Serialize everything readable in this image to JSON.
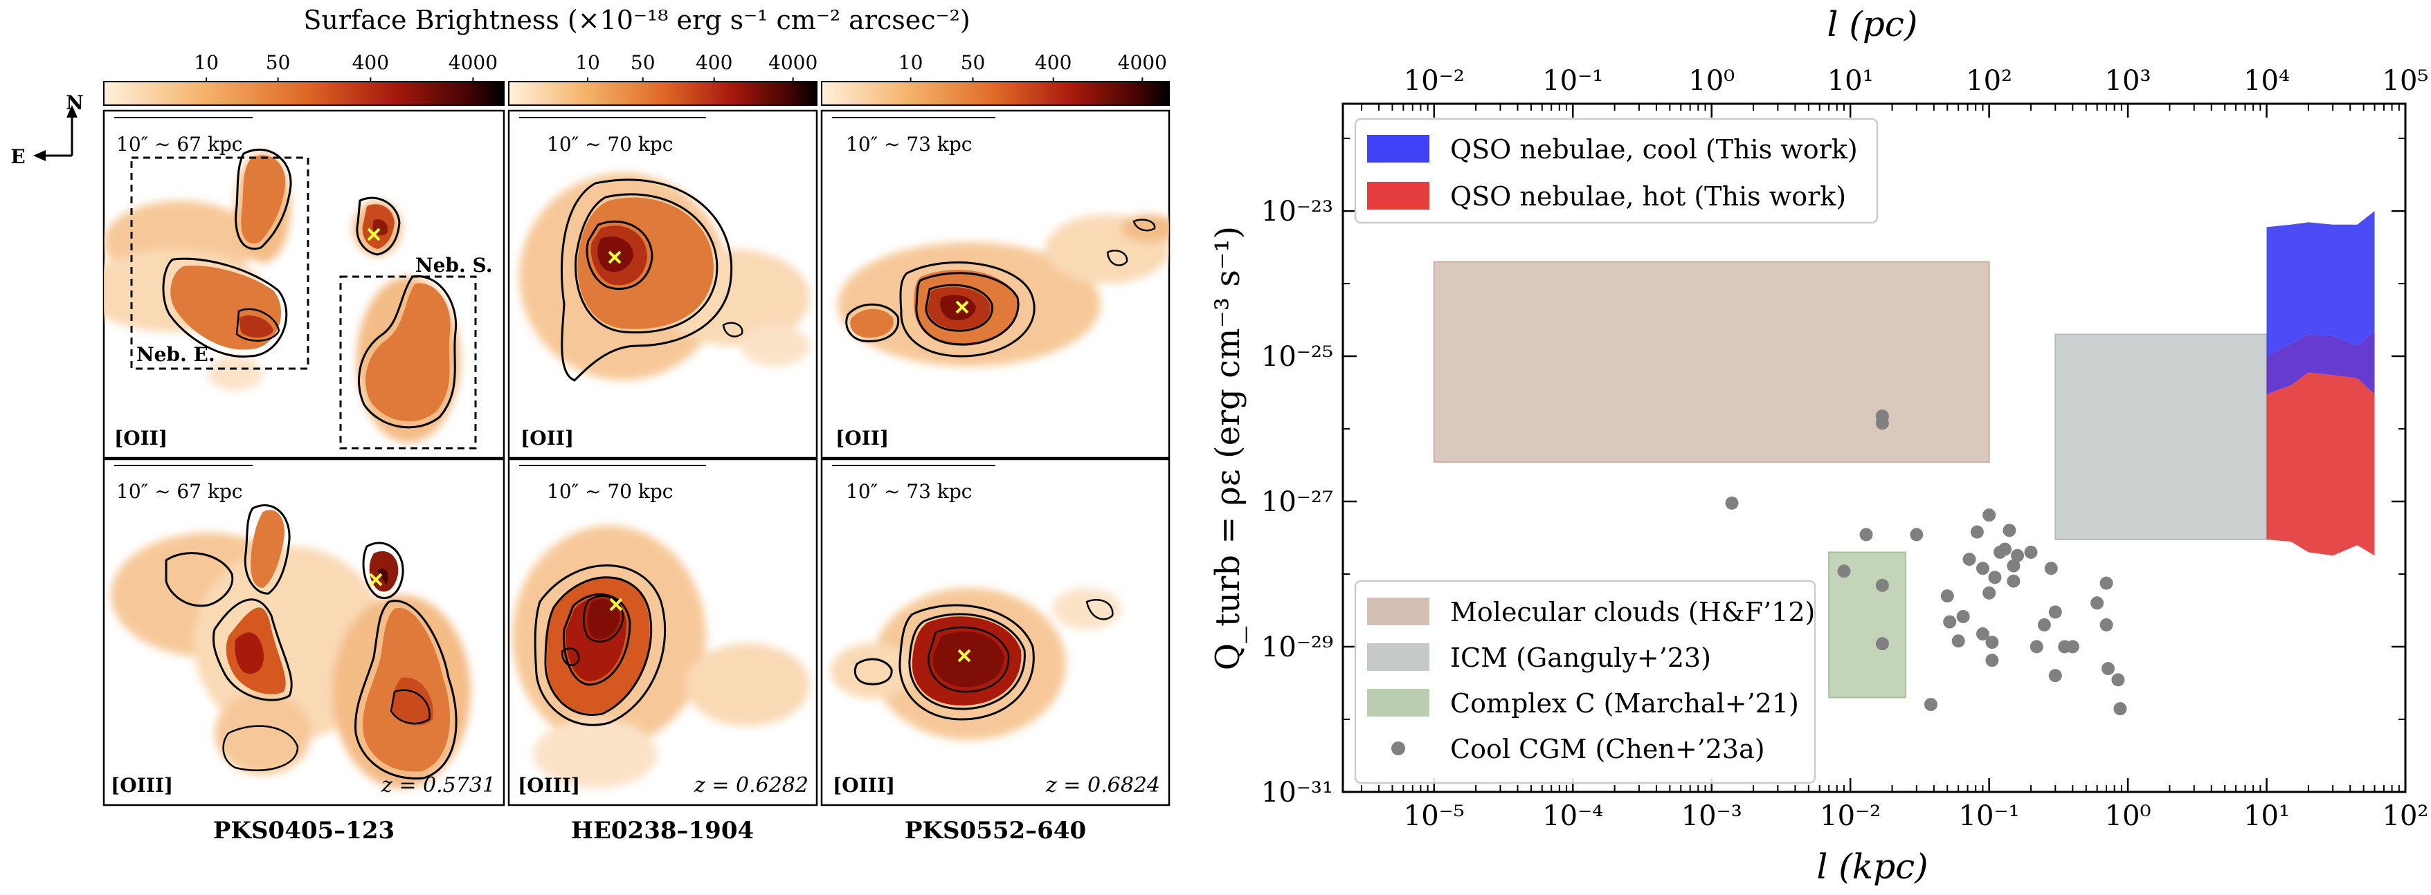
{
  "left_panel": {
    "colorbar_title": "Surface Brightness (×10⁻¹⁸ erg s⁻¹ cm⁻² arcsec⁻²)",
    "colorbar_ticks": [
      "10",
      "50",
      "400",
      "4000"
    ],
    "compass": {
      "north": "N",
      "east": "E"
    },
    "fields": [
      {
        "name": "PKS0405–123",
        "redshift": "z = 0.5731",
        "scalebar": "10″ ∼ 67 kpc",
        "row_labels": [
          "[OII]",
          "[OIII]"
        ],
        "nebula_labels": [
          "Neb. E.",
          "Neb. S."
        ]
      },
      {
        "name": "HE0238–1904",
        "redshift": "z = 0.6282",
        "scalebar": "10″ ∼ 70 kpc",
        "row_labels": [
          "[OII]",
          "[OIII]"
        ]
      },
      {
        "name": "PKS0552–640",
        "redshift": "z = 0.6824",
        "scalebar": "10″ ∼ 73 kpc",
        "row_labels": [
          "[OII]",
          "[OIII]"
        ]
      }
    ],
    "cmap_colors": [
      "#fff1dc",
      "#f5b36a",
      "#df6a28",
      "#a81a0c",
      "#4a0404",
      "#000000"
    ],
    "quasar_marker_color": "#ffff3c"
  },
  "chart_data": {
    "type": "scatter",
    "xlabel": "l (kpc)",
    "x2label": "l (pc)",
    "ylabel": "Q_turb = ρε (erg cm⁻³ s⁻¹)",
    "xscale": "log",
    "yscale": "log",
    "xlim": [
      2.2e-06,
      100
    ],
    "ylim": [
      1e-31,
      3e-22
    ],
    "x2lim": [
      0.0022,
      100000
    ],
    "xticks": [
      1e-05,
      0.0001,
      0.001,
      0.01,
      0.1,
      1,
      10,
      100
    ],
    "xtick_labels": [
      "10⁻⁵",
      "10⁻⁴",
      "10⁻³",
      "10⁻²",
      "10⁻¹",
      "10⁰",
      "10¹",
      "10²"
    ],
    "x2ticks": [
      0.01,
      0.1,
      1,
      10,
      100,
      1000,
      10000,
      100000
    ],
    "x2tick_labels": [
      "10⁻²",
      "10⁻¹",
      "10⁰",
      "10¹",
      "10²",
      "10³",
      "10⁴",
      "10⁵"
    ],
    "yticks": [
      1e-31,
      1e-29,
      1e-27,
      1e-25,
      1e-23
    ],
    "ytick_labels": [
      "10⁻³¹",
      "10⁻²⁹",
      "10⁻²⁷",
      "10⁻²⁵",
      "10⁻²³"
    ],
    "legend_top": [
      {
        "label": "QSO nebulae, cool (This work)",
        "color": "#1f1ff5"
      },
      {
        "label": "QSO nebulae, hot (This work)",
        "color": "#e01b1b"
      }
    ],
    "legend_bottom": [
      {
        "label": "Molecular clouds (H&F’12)",
        "color": "#c9b09f"
      },
      {
        "label": "ICM (Ganguly+’23)",
        "color": "#b5bcbc"
      },
      {
        "label": "Complex C (Marchal+’21)",
        "color": "#a9c29b"
      },
      {
        "label": "Cool CGM (Chen+’23a)",
        "color": "#808080"
      }
    ],
    "regions": [
      {
        "name": "Molecular clouds (H&F’12)",
        "x": [
          1e-05,
          0.1
        ],
        "y": [
          3.5e-27,
          2e-24
        ],
        "color": "#c9b09f"
      },
      {
        "name": "ICM (Ganguly+’23)",
        "x": [
          0.3,
          10
        ],
        "y": [
          3e-28,
          2e-25
        ],
        "color": "#b5bcbc"
      },
      {
        "name": "Complex C (Marchal+’21)",
        "x": [
          0.007,
          0.025
        ],
        "y": [
          2e-30,
          2e-28
        ],
        "color": "#a9c29b"
      }
    ],
    "bands": {
      "x": [
        10,
        15,
        20,
        30,
        45,
        60
      ],
      "cool": {
        "lower": [
          1e-25,
          1.5e-25,
          2e-25,
          1.9e-25,
          1.4e-25,
          2.2e-25
        ],
        "upper": [
          6e-24,
          6.5e-24,
          7e-24,
          6.5e-24,
          6.5e-24,
          1e-23
        ],
        "color": "#1f1ff5"
      },
      "hot": {
        "lower": [
          3e-28,
          2.8e-28,
          2e-28,
          1.8e-28,
          2.5e-28,
          1.8e-28
        ],
        "upper": [
          3e-26,
          4e-26,
          6e-26,
          5.5e-26,
          5e-26,
          3e-26
        ],
        "color": "#e01b1b"
      },
      "overlap_color": "#4b19c8"
    },
    "series": [
      {
        "name": "Cool CGM (Chen+’23a)",
        "type": "scatter",
        "points": [
          [
            0.0014,
            9.5e-28
          ],
          [
            0.017,
            1.5e-26
          ],
          [
            0.017,
            1.2e-26
          ],
          [
            0.013,
            3.5e-28
          ],
          [
            0.009,
            1.1e-28
          ],
          [
            0.017,
            7e-29
          ],
          [
            0.017,
            1.1e-29
          ],
          [
            0.038,
            1.6e-30
          ],
          [
            0.03,
            3.5e-28
          ],
          [
            0.05,
            5e-29
          ],
          [
            0.052,
            2.2e-29
          ],
          [
            0.06,
            1.2e-29
          ],
          [
            0.065,
            2.6e-29
          ],
          [
            0.072,
            1.6e-28
          ],
          [
            0.082,
            3.8e-28
          ],
          [
            0.09,
            1.5e-29
          ],
          [
            0.09,
            1.2e-28
          ],
          [
            0.1,
            6.5e-28
          ],
          [
            0.1,
            5.5e-29
          ],
          [
            0.105,
            6.5e-30
          ],
          [
            0.105,
            1.15e-29
          ],
          [
            0.11,
            9e-29
          ],
          [
            0.12,
            2e-28
          ],
          [
            0.13,
            2.2e-28
          ],
          [
            0.15,
            1.3e-28
          ],
          [
            0.14,
            4e-28
          ],
          [
            0.15,
            8e-29
          ],
          [
            0.16,
            1.8e-28
          ],
          [
            0.2,
            2e-28
          ],
          [
            0.22,
            1e-29
          ],
          [
            0.25,
            2e-29
          ],
          [
            0.3,
            3e-29
          ],
          [
            0.28,
            1.2e-28
          ],
          [
            0.3,
            4e-30
          ],
          [
            0.35,
            1e-29
          ],
          [
            0.4,
            1e-29
          ],
          [
            0.6,
            4e-29
          ],
          [
            0.7,
            7.5e-29
          ],
          [
            0.7,
            2e-29
          ],
          [
            0.72,
            5e-30
          ],
          [
            0.85,
            3.5e-30
          ],
          [
            0.88,
            1.4e-30
          ]
        ],
        "color": "#808080"
      }
    ]
  }
}
